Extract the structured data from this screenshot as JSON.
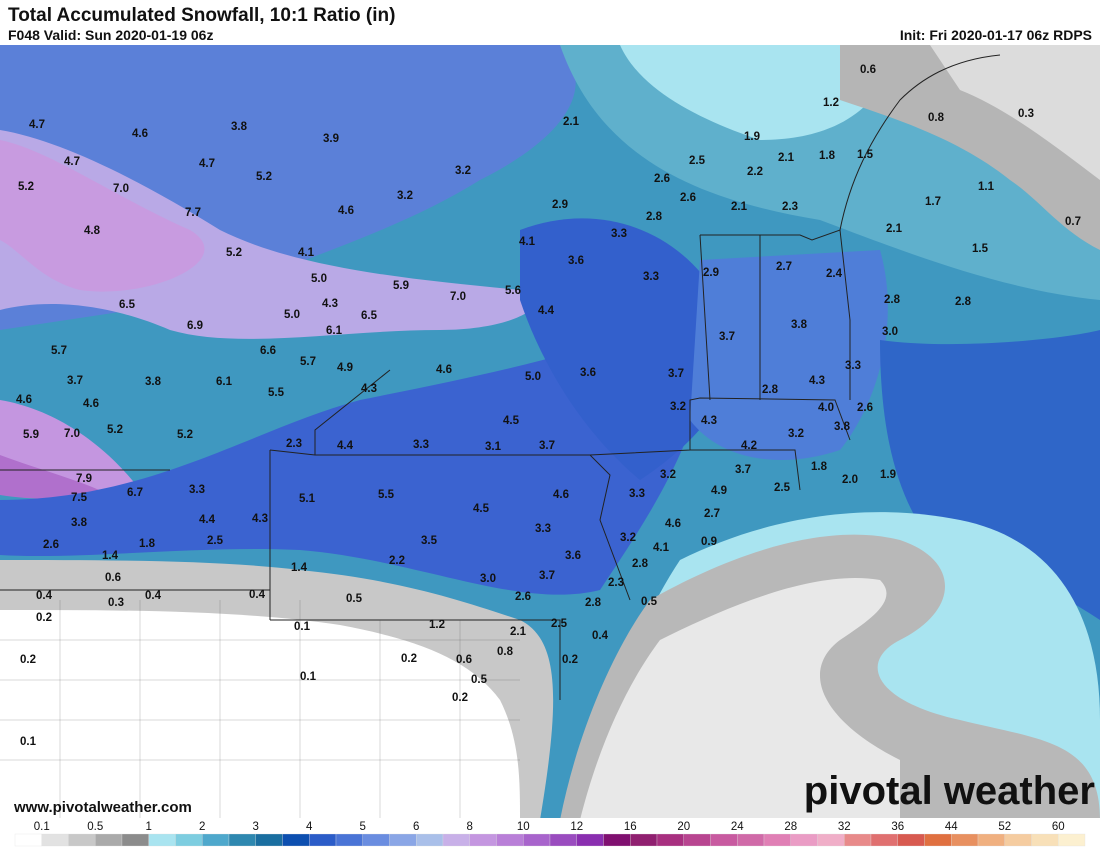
{
  "header": {
    "title": "Total Accumulated Snowfall, 10:1 Ratio (in)",
    "valid": "F048 Valid: Sun 2020-01-19 06z",
    "init": "Init: Fri 2020-01-17 06z RDPS"
  },
  "map": {
    "labels": [
      "4.7",
      "4.6",
      "3.8",
      "3.9",
      "2.1",
      "0.6",
      "1.2",
      "0.8",
      "0.3",
      "4.7",
      "5.2",
      "7.0",
      "4.7",
      "5.2",
      "3.2",
      "3.2",
      "1.9",
      "2.5",
      "2.1",
      "2.2",
      "1.8",
      "1.5",
      "2.6",
      "2.6",
      "1.1",
      "1.7",
      "7.7",
      "4.6",
      "2.9",
      "2.8",
      "2.1",
      "2.3",
      "0.7",
      "4.8",
      "2.1",
      "5.2",
      "4.1",
      "4.1",
      "3.3",
      "1.5",
      "3.6",
      "2.9",
      "2.7",
      "2.4",
      "3.3",
      "5.0",
      "5.9",
      "7.0",
      "5.6",
      "6.5",
      "4.3",
      "4.4",
      "2.8",
      "2.8",
      "6.9",
      "5.0",
      "6.5",
      "6.1",
      "3.7",
      "3.8",
      "3.0",
      "5.7",
      "6.6",
      "5.7",
      "4.9",
      "4.6",
      "5.0",
      "3.6",
      "3.7",
      "3.3",
      "3.7",
      "3.8",
      "6.1",
      "5.5",
      "4.3",
      "2.8",
      "4.3",
      "4.6",
      "4.6",
      "3.2",
      "4.0",
      "2.6",
      "4.5",
      "4.3",
      "5.2",
      "5.9",
      "7.0",
      "5.2",
      "3.2",
      "3.8",
      "2.3",
      "4.4",
      "3.3",
      "3.1",
      "3.7",
      "4.2",
      "1.8",
      "2.0",
      "1.9",
      "3.7",
      "3.2",
      "7.9",
      "6.7",
      "3.3",
      "4.9",
      "2.5",
      "7.5",
      "5.1",
      "5.5",
      "4.6",
      "3.3",
      "4.5",
      "2.7",
      "3.8",
      "4.4",
      "4.3",
      "4.6",
      "3.3",
      "3.2",
      "0.9",
      "2.6",
      "1.8",
      "2.5",
      "3.5",
      "4.1",
      "1.4",
      "3.6",
      "2.2",
      "2.8",
      "1.4",
      "0.6",
      "3.7",
      "3.0",
      "2.3",
      "0.4",
      "0.3",
      "0.4",
      "0.4",
      "2.6",
      "0.5",
      "2.8",
      "0.5",
      "0.2",
      "0.1",
      "1.2",
      "2.5",
      "2.1",
      "0.4",
      "0.8",
      "0.2",
      "0.2",
      "0.6",
      "0.2",
      "0.5",
      "0.1",
      "0.2",
      "0.1"
    ]
  },
  "footer": {
    "website": "www.pivotalweather.com",
    "logo": "pivotal weather"
  },
  "colorbar": {
    "labels": [
      "0.1",
      "0.5",
      "1",
      "2",
      "3",
      "4",
      "5",
      "6",
      "8",
      "10",
      "12",
      "16",
      "20",
      "24",
      "28",
      "32",
      "36",
      "44",
      "52",
      "60"
    ],
    "colors": [
      "#ffffff",
      "#e2e2e2",
      "#c8c8c8",
      "#aaaaaa",
      "#8c8c8c",
      "#a9e4f0",
      "#7dcde0",
      "#4ea8cc",
      "#2e88b0",
      "#1a6ea0",
      "#0d4fb0",
      "#2b5cc8",
      "#4a74d6",
      "#6a8de0",
      "#8aa6e6",
      "#a9bfe9",
      "#c8b0e8",
      "#c496e0",
      "#b97fd8",
      "#a864cc",
      "#9a4cbf",
      "#8a2fb0",
      "#801070",
      "#902070",
      "#a83080",
      "#b84590",
      "#c85aa0",
      "#d06aa8",
      "#e07fb5",
      "#ea9cc5",
      "#f0aec8",
      "#e88a8a",
      "#e07070",
      "#d85a50",
      "#e07040",
      "#e89060",
      "#f0b080",
      "#f5cca0",
      "#f8e0b8",
      "#fcf0d0"
    ]
  }
}
